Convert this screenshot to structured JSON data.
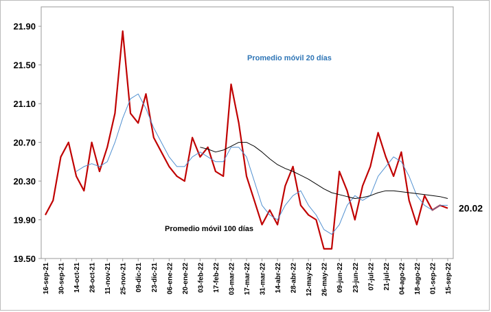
{
  "chart_data": {
    "type": "line",
    "categories": [
      "16-sep-21",
      null,
      "30-sep-21",
      null,
      "14-oct-21",
      null,
      "28-oct-21",
      null,
      "11-nov-21",
      null,
      "25-nov-21",
      null,
      "09-dic-21",
      null,
      "23-dic-21",
      null,
      "06-ene-22",
      null,
      "20-ene-22",
      null,
      "03-feb-22",
      null,
      "17-feb-22",
      null,
      "03-mar-22",
      null,
      "17-mar-22",
      null,
      "31-mar-22",
      null,
      "14-abr-22",
      null,
      "28-abr-22",
      null,
      "12-may-22",
      null,
      "26-may-22",
      null,
      "09-jun-22",
      null,
      "23-jun-22",
      null,
      "07-jul-22",
      null,
      "21-jul-22",
      null,
      "04-ago-22",
      null,
      "18-ago-22",
      null,
      "01-sep-22",
      null,
      "15-sep-22"
    ],
    "series": [
      {
        "color": "#c00000",
        "values": [
          19.95,
          20.1,
          20.55,
          20.7,
          20.35,
          20.2,
          20.7,
          20.4,
          20.65,
          21.0,
          21.85,
          21.0,
          20.9,
          21.2,
          20.75,
          20.6,
          20.45,
          20.35,
          20.3,
          20.75,
          20.55,
          20.65,
          20.4,
          20.35,
          21.3,
          20.9,
          20.35,
          20.1,
          19.85,
          20.0,
          19.85,
          20.25,
          20.45,
          20.05,
          19.95,
          19.9,
          19.6,
          19.6,
          20.4,
          20.2,
          19.9,
          20.25,
          20.45,
          20.8,
          20.55,
          20.35,
          20.6,
          20.1,
          19.85,
          20.15,
          20.0,
          20.05,
          20.02
        ]
      },
      {
        "color": "#4f8fd0",
        "values": [
          null,
          null,
          null,
          null,
          20.4,
          20.45,
          20.48,
          20.45,
          20.5,
          20.7,
          20.95,
          21.15,
          21.2,
          21.05,
          20.85,
          20.7,
          20.55,
          20.45,
          20.45,
          20.55,
          20.6,
          20.55,
          20.5,
          20.5,
          20.65,
          20.65,
          20.55,
          20.3,
          20.05,
          19.95,
          19.9,
          20.05,
          20.15,
          20.2,
          20.05,
          19.95,
          19.8,
          19.75,
          19.85,
          20.05,
          20.15,
          20.1,
          20.15,
          20.35,
          20.45,
          20.55,
          20.5,
          20.35,
          20.15,
          20.05,
          20.0,
          20.05,
          20.05
        ]
      },
      {
        "color": "#000000",
        "values": [
          null,
          null,
          null,
          null,
          null,
          null,
          null,
          null,
          null,
          null,
          null,
          null,
          null,
          null,
          null,
          null,
          null,
          null,
          null,
          null,
          20.65,
          20.63,
          20.6,
          20.62,
          20.66,
          20.7,
          20.7,
          20.66,
          20.6,
          20.53,
          20.47,
          20.43,
          20.4,
          20.36,
          20.32,
          20.27,
          20.22,
          20.18,
          20.16,
          20.14,
          20.12,
          20.13,
          20.15,
          20.18,
          20.2,
          20.2,
          20.19,
          20.18,
          20.17,
          20.16,
          20.15,
          20.14,
          20.12
        ]
      }
    ],
    "annotations": [
      {
        "text": "Promedio  móvil  20  días"
      },
      {
        "text": "Promedio  móvil  100  días"
      }
    ],
    "ylim": [
      19.5,
      22.1
    ],
    "yticks": [
      {
        "value": 19.5,
        "label": "19.50"
      },
      {
        "value": 19.9,
        "label": "19.90"
      },
      {
        "value": 20.3,
        "label": "20.30"
      },
      {
        "value": 20.7,
        "label": "20.70"
      },
      {
        "value": 21.1,
        "label": "21.10"
      },
      {
        "value": 21.5,
        "label": "21.50"
      },
      {
        "value": 21.9,
        "label": "21.90"
      }
    ],
    "grid": false
  }
}
